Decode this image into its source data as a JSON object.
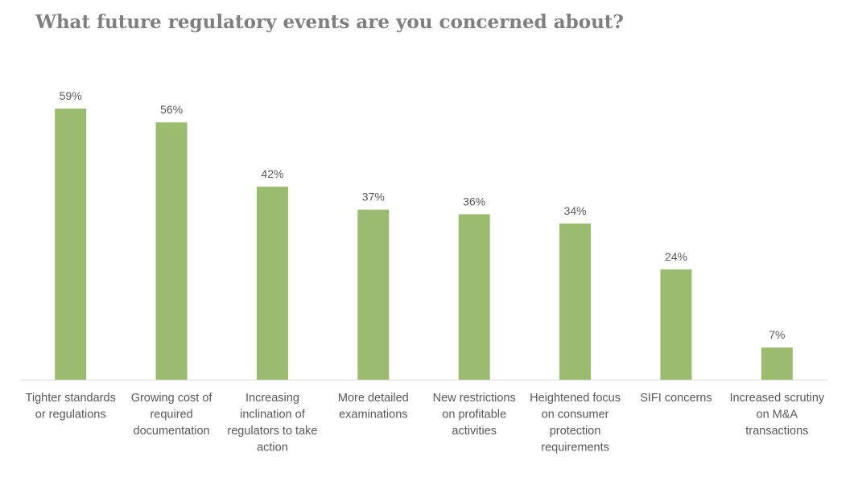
{
  "title": "What future regulatory events are you concerned about?",
  "chart_data": {
    "type": "bar",
    "title": "What future regulatory events are you concerned about?",
    "categories": [
      [
        "Tighter standards",
        "or regulations"
      ],
      [
        "Growing cost of",
        "required",
        "documentation"
      ],
      [
        "Increasing",
        "inclination of",
        "regulators to take",
        "action"
      ],
      [
        "More detailed",
        "examinations"
      ],
      [
        "New restrictions",
        "on profitable",
        "activities"
      ],
      [
        "Heightened focus",
        "on consumer",
        "protection",
        "requirements"
      ],
      [
        "SIFI concerns"
      ],
      [
        "Increased scrutiny",
        "on M&A",
        "transactions"
      ]
    ],
    "values": [
      59,
      56,
      42,
      37,
      36,
      34,
      24,
      7
    ],
    "data_labels": [
      "59%",
      "56%",
      "42%",
      "37%",
      "36%",
      "34%",
      "24%",
      "7%"
    ],
    "ylim": [
      0,
      59
    ],
    "xlabel": "",
    "ylabel": "",
    "grid": false,
    "legend": "none",
    "bar_color": "#9bbb6e",
    "axis_color": "#d9d9d9",
    "text_color": "#595959"
  }
}
